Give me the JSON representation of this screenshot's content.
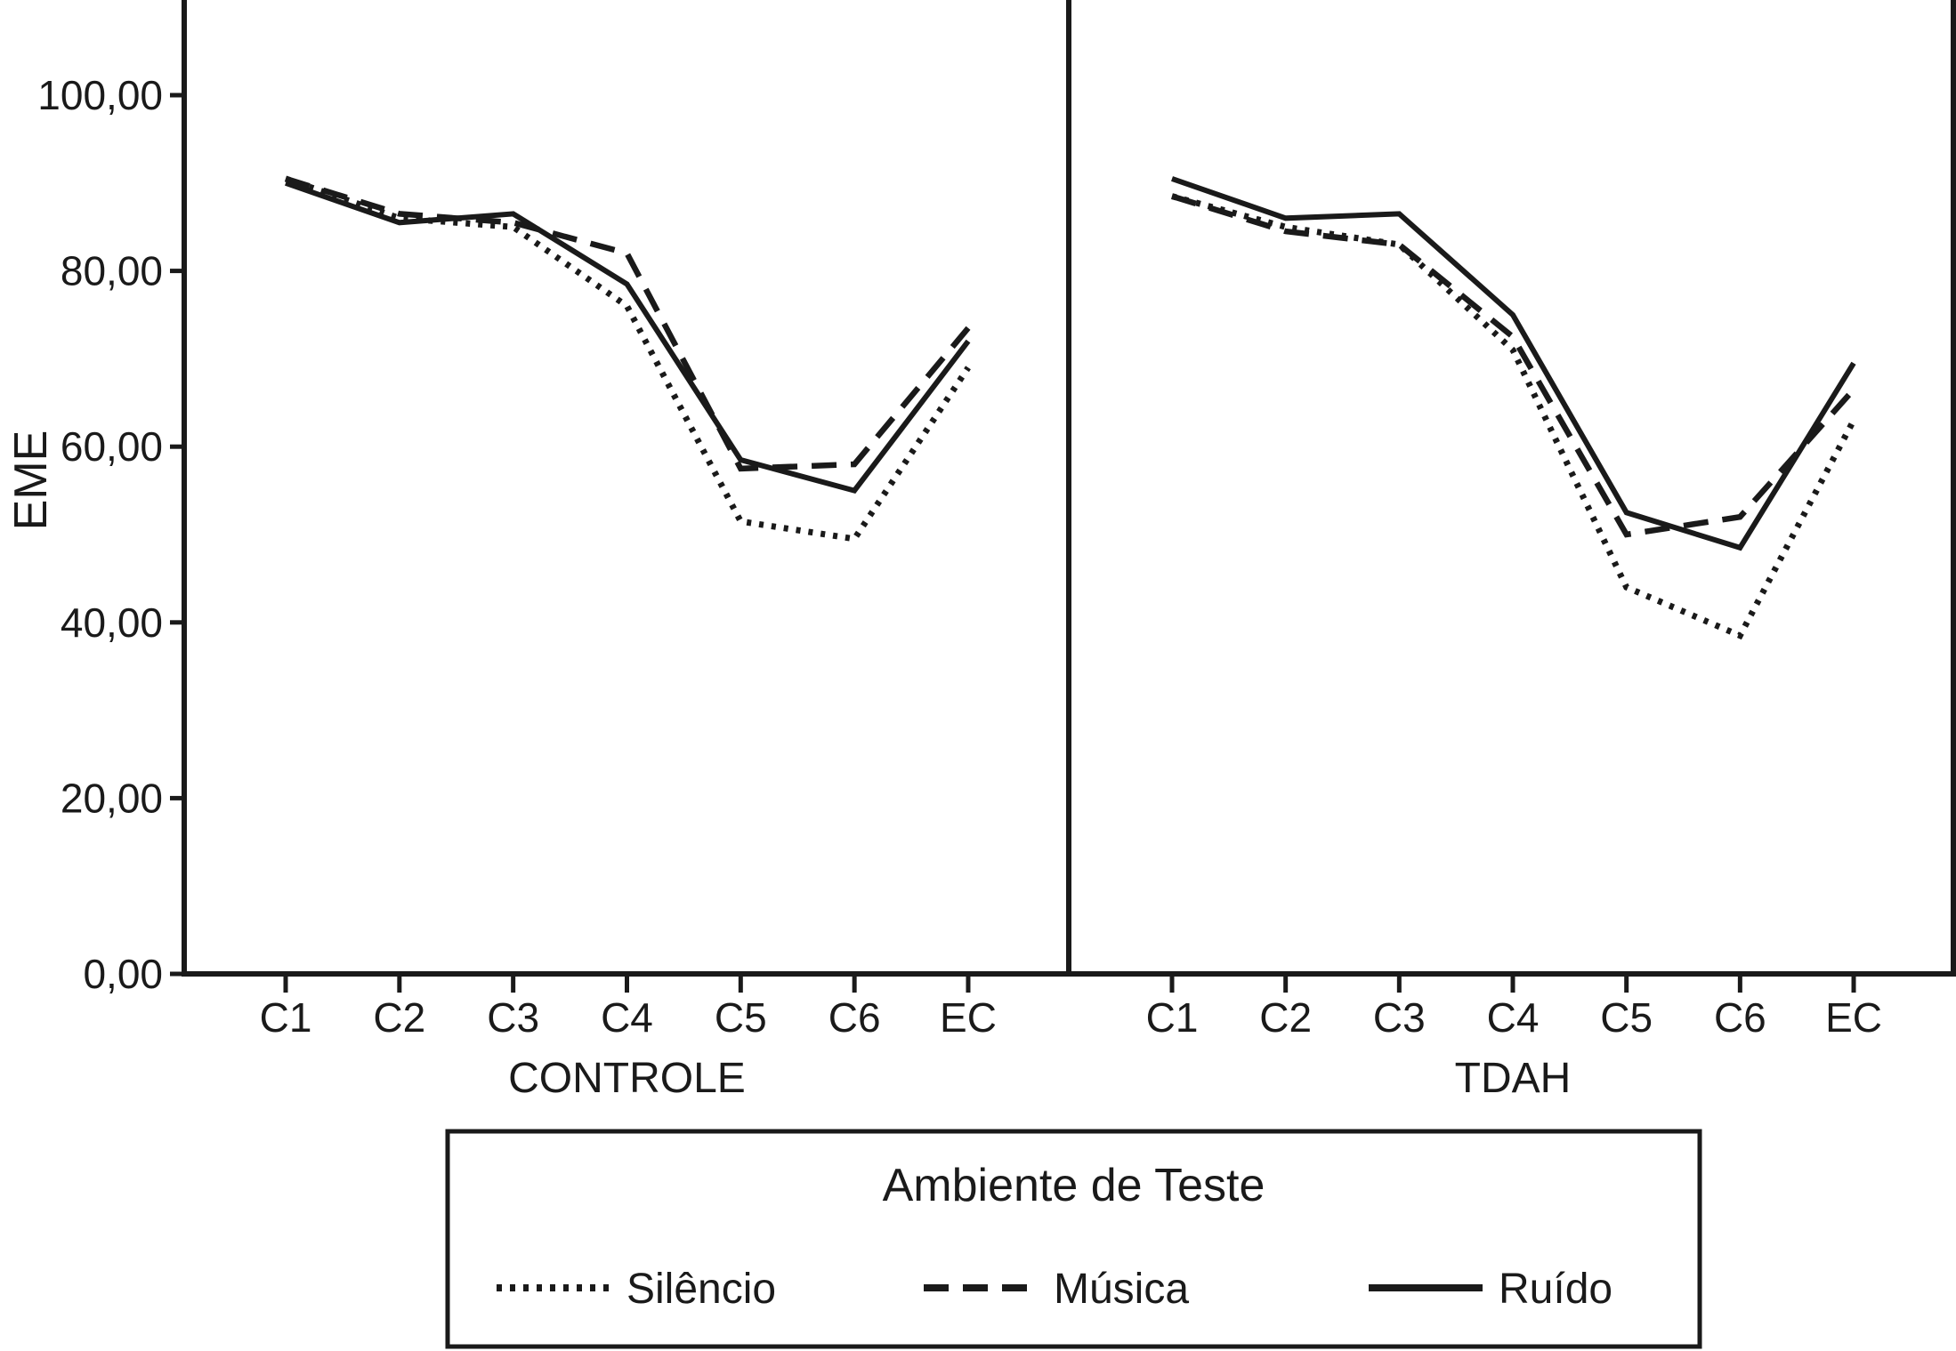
{
  "colors": {
    "line": "#1a1a1a",
    "background": "#ffffff"
  },
  "y_axis": {
    "label": "EME",
    "ticks": [
      {
        "value": 0,
        "label": "0,00"
      },
      {
        "value": 20,
        "label": "20,00"
      },
      {
        "value": 40,
        "label": "40,00"
      },
      {
        "value": 60,
        "label": "60,00"
      },
      {
        "value": 80,
        "label": "80,00"
      },
      {
        "value": 100,
        "label": "100,00"
      }
    ]
  },
  "chart_data": {
    "type": "line",
    "ylabel": "EME",
    "ylim": [
      0,
      110
    ],
    "grid": false,
    "legend_position": "bottom",
    "legend_title": "Ambiente de Teste",
    "categories": [
      "C1",
      "C2",
      "C3",
      "C4",
      "C5",
      "C6",
      "EC"
    ],
    "panels": [
      {
        "label": "CONTROLE",
        "series": [
          {
            "name": "Silêncio",
            "style": "dotted",
            "values": [
              90.5,
              86.0,
              85.0,
              76.0,
              51.5,
              49.5,
              69.0
            ]
          },
          {
            "name": "Música",
            "style": "dashed",
            "values": [
              90.5,
              86.5,
              85.5,
              82.0,
              57.5,
              58.0,
              73.5
            ]
          },
          {
            "name": "Ruído",
            "style": "solid",
            "values": [
              90.0,
              85.5,
              86.5,
              78.5,
              58.5,
              55.0,
              72.0
            ]
          }
        ]
      },
      {
        "label": "TDAH",
        "series": [
          {
            "name": "Silêncio",
            "style": "dotted",
            "values": [
              88.5,
              85.0,
              83.0,
              71.0,
              44.0,
              38.5,
              63.0
            ]
          },
          {
            "name": "Música",
            "style": "dashed",
            "values": [
              88.5,
              84.5,
              83.0,
              72.5,
              50.0,
              52.0,
              66.5
            ]
          },
          {
            "name": "Ruído",
            "style": "solid",
            "values": [
              90.5,
              86.0,
              86.5,
              75.0,
              52.5,
              48.5,
              69.5
            ]
          }
        ]
      }
    ],
    "legend": {
      "title": "Ambiente de Teste",
      "entries": [
        {
          "label": "Silêncio",
          "style": "dotted"
        },
        {
          "label": "Música",
          "style": "dashed"
        },
        {
          "label": "Ruído",
          "style": "solid"
        }
      ]
    }
  }
}
